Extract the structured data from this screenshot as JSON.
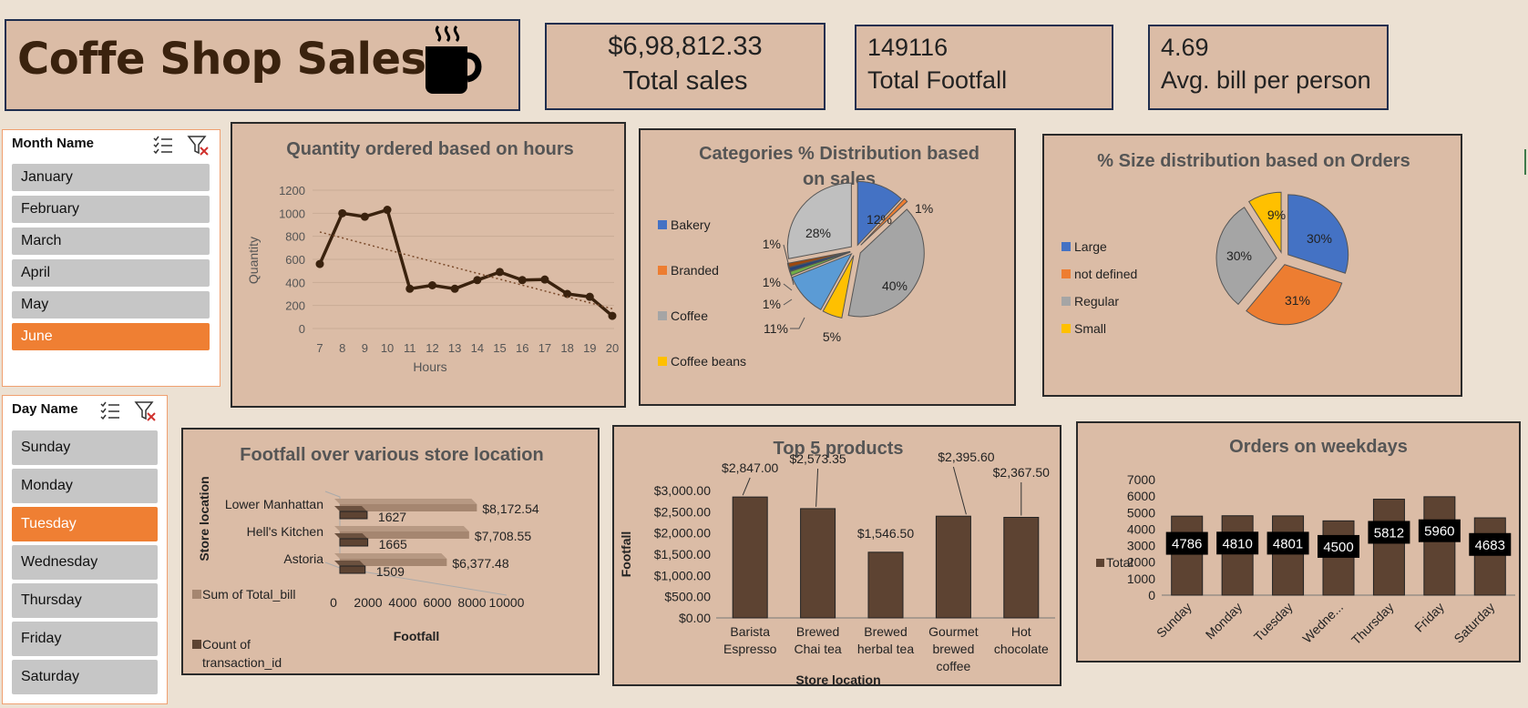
{
  "title": "Coffe Shop Sales",
  "kpis": {
    "total_sales": {
      "value": "$6,98,812.33",
      "label": "Total sales"
    },
    "total_footfall": {
      "value": "149116",
      "label": "Total Footfall"
    },
    "avg_bill": {
      "value": "4.69",
      "label": "Avg. bill per person"
    }
  },
  "slicers": {
    "month": {
      "title": "Month Name",
      "items": [
        "January",
        "February",
        "March",
        "April",
        "May",
        "June"
      ],
      "selected": "June"
    },
    "day": {
      "title": "Day Name",
      "items": [
        "Sunday",
        "Monday",
        "Tuesday",
        "Wednesday",
        "Thursday",
        "Friday",
        "Saturday"
      ],
      "selected": "Tuesday"
    }
  },
  "colors": {
    "brown": "#5d4332",
    "dark_brown": "#3a220e",
    "orange": "#ef7f33",
    "panel": "#dbbca6",
    "blue": "#4472c4",
    "gray": "#a5a5a5",
    "gold": "#ffc000"
  },
  "chart_data": [
    {
      "type": "line",
      "title": "Quantity ordered based on hours",
      "xlabel": "Hours",
      "ylabel": "Quantity",
      "x": [
        7,
        8,
        9,
        10,
        11,
        12,
        13,
        14,
        15,
        16,
        17,
        18,
        19,
        20
      ],
      "y": [
        560,
        1000,
        970,
        1030,
        345,
        375,
        345,
        420,
        490,
        420,
        425,
        300,
        275,
        110
      ],
      "ylim": [
        0,
        1200
      ],
      "yticks": [
        "0",
        "200",
        "400",
        "600",
        "800",
        "1000",
        "1200"
      ],
      "trendline": "linear, dotted"
    },
    {
      "type": "pie",
      "title": "Categories % Distribution based on sales",
      "legend": [
        "Bakery",
        "Branded",
        "Coffee",
        "Coffee beans"
      ],
      "slices": [
        {
          "label": "12%",
          "value": 12,
          "color": "#4472c4"
        },
        {
          "label": "1%",
          "value": 1,
          "color": "#ed7d31"
        },
        {
          "label": "40%",
          "value": 40,
          "color": "#a5a5a5"
        },
        {
          "label": "5%",
          "value": 5,
          "color": "#ffc000"
        },
        {
          "label": "11%",
          "value": 11,
          "color": "#5b9bd5"
        },
        {
          "label": "1%",
          "value": 1,
          "color": "#70ad47"
        },
        {
          "label": "1%",
          "value": 1,
          "color": "#264478"
        },
        {
          "label": "1%",
          "value": 1,
          "color": "#9e480e"
        },
        {
          "label": "28%",
          "value": 28,
          "color": "#bfbfbf"
        }
      ]
    },
    {
      "type": "pie",
      "title": "% Size distribution based on Orders",
      "legend": [
        "Large",
        "not defined",
        "Regular",
        "Small"
      ],
      "slices": [
        {
          "label": "30%",
          "value": 30,
          "color": "#4472c4"
        },
        {
          "label": "31%",
          "value": 31,
          "color": "#ed7d31"
        },
        {
          "label": "30%",
          "value": 30,
          "color": "#a5a5a5"
        },
        {
          "label": "9%",
          "value": 9,
          "color": "#ffc000"
        }
      ]
    },
    {
      "type": "bar",
      "title": "Footfall over various store location",
      "categories": [
        "Lower Manhattan",
        "Hell's Kitchen",
        "Astoria"
      ],
      "series": [
        {
          "name": "Sum of Total_bill",
          "values": [
            8172.54,
            7708.55,
            6377.48
          ],
          "labels": [
            "$8,172.54",
            "$7,708.55",
            "$6,377.48"
          ]
        },
        {
          "name": "Count of transaction_id",
          "values": [
            1627,
            1665,
            1509
          ],
          "labels": [
            "1627",
            "1665",
            "1509"
          ]
        }
      ],
      "xlabel": "Footfall",
      "ylabel": "Store location",
      "xticks": [
        "0",
        "2000",
        "4000",
        "6000",
        "8000",
        "10000"
      ],
      "xlim": [
        0,
        10000
      ]
    },
    {
      "type": "bar",
      "title": "Top  5 products",
      "categories": [
        [
          "Barista",
          "Espresso"
        ],
        [
          "Brewed",
          "Chai tea"
        ],
        [
          "Brewed",
          "herbal tea"
        ],
        [
          "Gourmet",
          "brewed",
          "coffee"
        ],
        [
          "Hot",
          "chocolate"
        ]
      ],
      "values": [
        2847.0,
        2573.35,
        1546.5,
        2395.6,
        2367.5
      ],
      "value_labels": [
        "$2,847.00",
        "$2,573.35",
        "$1,546.50",
        "$2,395.60",
        "$2,367.50"
      ],
      "yticks": [
        "$0.00",
        "$500.00",
        "$1,000.00",
        "$1,500.00",
        "$2,000.00",
        "$2,500.00",
        "$3,000.00"
      ],
      "ylim": [
        0,
        3000
      ],
      "xlabel": "Store location",
      "ylabel": "Footfall"
    },
    {
      "type": "bar",
      "title": "Orders on weekdays",
      "categories": [
        "Sunday",
        "Monday",
        "Tuesday",
        "Wedne...",
        "Thursday",
        "Friday",
        "Saturday"
      ],
      "values": [
        4786,
        4810,
        4801,
        4500,
        5812,
        5960,
        4683
      ],
      "yticks": [
        "0",
        "1000",
        "2000",
        "3000",
        "4000",
        "5000",
        "6000",
        "7000"
      ],
      "ylim": [
        0,
        7000
      ],
      "legend": "Total"
    }
  ]
}
